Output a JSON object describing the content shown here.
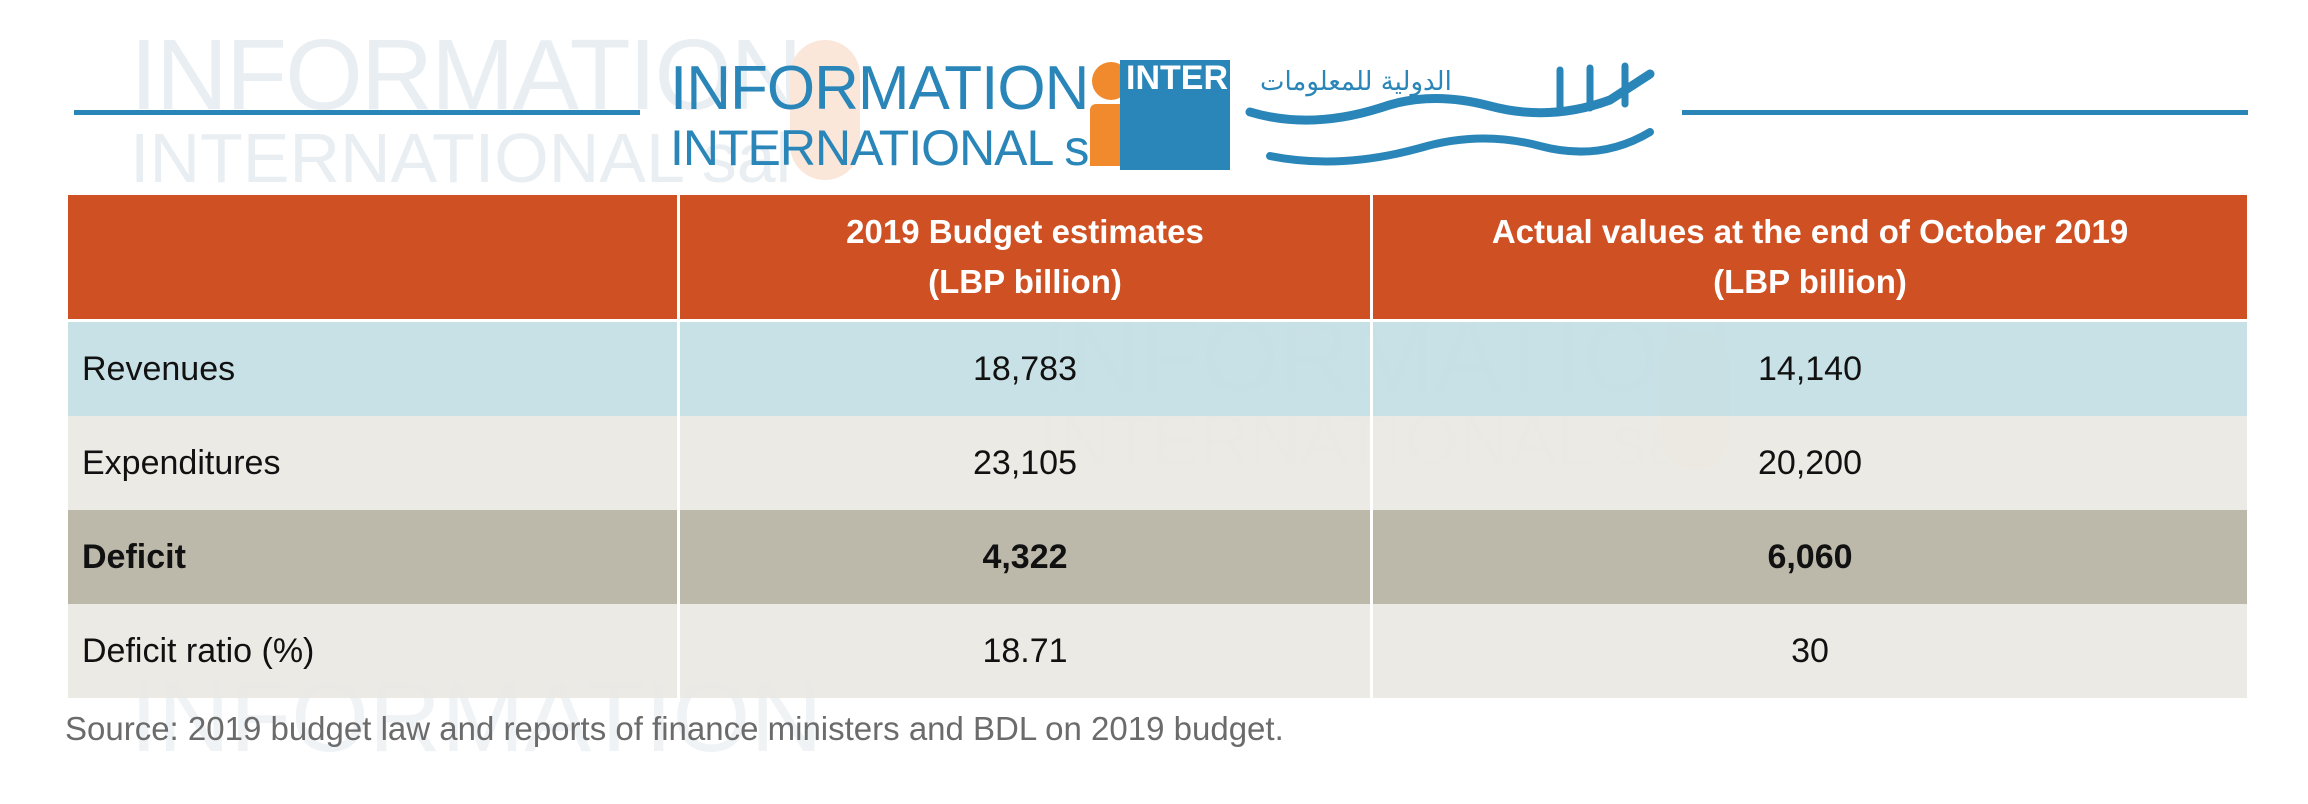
{
  "logo": {
    "line1": "INFORMATION",
    "line2": "INTERNATIONAL sal",
    "box_text": "INTERNATIONAL",
    "arabic": "الدولية للمعلومات"
  },
  "table": {
    "headers": [
      "",
      "2019 Budget estimates",
      "Actual values at the end of October 2019"
    ],
    "header_units": [
      "",
      "(LBP billion)",
      "(LBP billion)"
    ],
    "rows": [
      {
        "label": "Revenues",
        "budget": "18,783",
        "actual": "14,140"
      },
      {
        "label": "Expenditures",
        "budget": "23,105",
        "actual": "20,200"
      },
      {
        "label": "Deficit",
        "budget": "4,322",
        "actual": "6,060"
      },
      {
        "label": "Deficit ratio (%)",
        "budget": "18.71",
        "actual": "30"
      }
    ]
  },
  "source": "Source: 2019 budget law and reports of finance ministers and BDL on 2019 budget.",
  "colors": {
    "header_bg": "#cf5022",
    "revenues_bg": "#c3dee4",
    "expenditures_bg": "#eae8e3",
    "deficit_bg": "#bcb8aa",
    "brand_blue": "#2a86b8",
    "brand_orange": "#f08a2c"
  }
}
